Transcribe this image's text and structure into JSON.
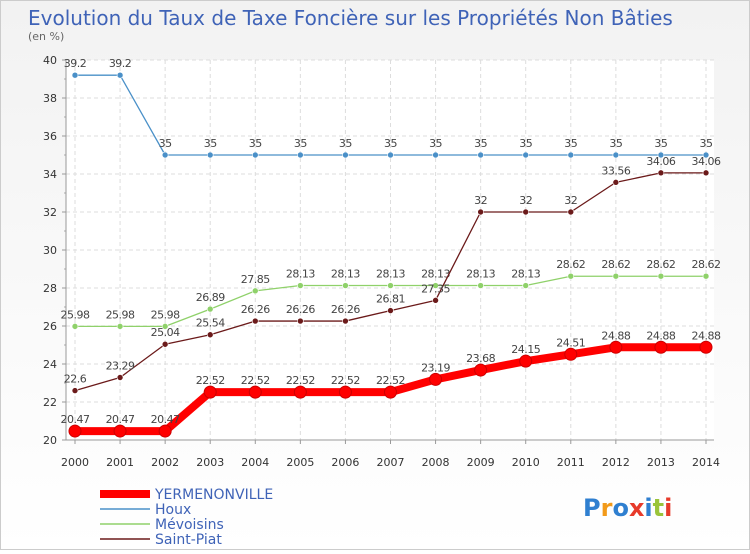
{
  "chart_data": {
    "type": "line",
    "title": "Evolution du Taux de Taxe Foncière sur les Propriétés Non Bâties",
    "subtitle": "(en %)",
    "xlabel": "",
    "ylabel": "",
    "ylim": [
      20,
      40
    ],
    "yticks": [
      20,
      22,
      24,
      26,
      28,
      30,
      32,
      34,
      36,
      38,
      40
    ],
    "categories": [
      "2000",
      "2001",
      "2002",
      "2003",
      "2004",
      "2005",
      "2006",
      "2007",
      "2008",
      "2009",
      "2010",
      "2011",
      "2012",
      "2013",
      "2014"
    ],
    "grid": true,
    "legend_position": "bottom-left",
    "series": [
      {
        "name": "YERMENONVILLE",
        "color": "#ff0000",
        "values": [
          20.47,
          20.47,
          20.47,
          22.52,
          22.52,
          22.52,
          22.52,
          22.52,
          23.19,
          23.68,
          24.15,
          24.51,
          24.88,
          24.88,
          24.88
        ]
      },
      {
        "name": "Houx",
        "color": "#4a90c8",
        "values": [
          39.2,
          39.2,
          35,
          35,
          35,
          35,
          35,
          35,
          35,
          35,
          35,
          35,
          35,
          35,
          35
        ]
      },
      {
        "name": "Mévoisins",
        "color": "#8fd16a",
        "values": [
          25.98,
          25.98,
          25.98,
          26.89,
          27.85,
          28.13,
          28.13,
          28.13,
          28.13,
          28.13,
          28.13,
          28.62,
          28.62,
          28.62,
          28.62
        ]
      },
      {
        "name": "Saint-Piat",
        "color": "#6b1a1a",
        "values": [
          22.6,
          23.29,
          25.04,
          25.54,
          26.26,
          26.26,
          26.26,
          26.81,
          27.35,
          32,
          32,
          32,
          33.56,
          34.06,
          34.06
        ]
      }
    ]
  },
  "logo": {
    "text": "Proxiti",
    "colors": [
      "#2f7fd0",
      "#f29a1a",
      "#2f7fd0",
      "#e73a2a",
      "#2f7fd0",
      "#9ac43a",
      "#e73a2a"
    ]
  }
}
